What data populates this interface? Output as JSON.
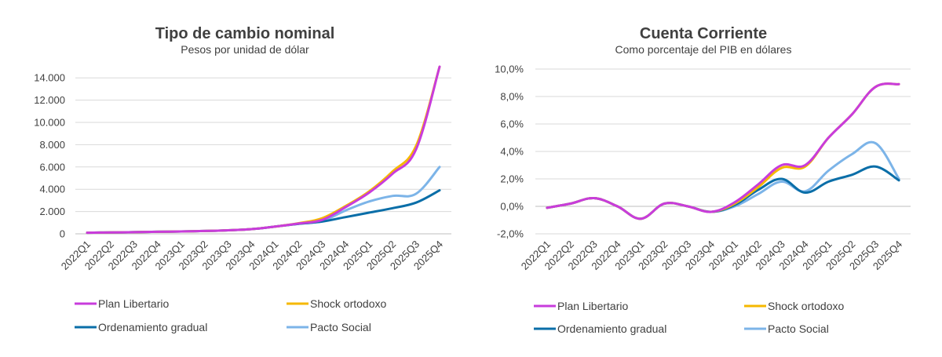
{
  "chart_data": [
    {
      "type": "line",
      "title": "Tipo de cambio nominal",
      "subtitle": "Pesos por unidad de dólar",
      "xlabel": "",
      "ylabel": "",
      "categories": [
        "2022Q1",
        "2022Q2",
        "2022Q3",
        "2022Q4",
        "2023Q1",
        "2023Q2",
        "2023Q3",
        "2023Q4",
        "2024Q1",
        "2024Q2",
        "2024Q3",
        "2024Q4",
        "2025Q1",
        "2025Q2",
        "2025Q3",
        "2025Q4"
      ],
      "ylim": [
        0,
        15000
      ],
      "yticks": [
        0,
        2000,
        4000,
        6000,
        8000,
        10000,
        12000,
        14000
      ],
      "ytick_labels": [
        "0",
        "2.000",
        "4.000",
        "6.000",
        "8.000",
        "10.000",
        "12.000",
        "14.000"
      ],
      "grid": true,
      "legend_position": "bottom",
      "series": [
        {
          "name": "Plan Libertario",
          "color": "#c83cdc",
          "values": [
            100,
            120,
            150,
            180,
            210,
            250,
            320,
            420,
            650,
            920,
            1250,
            2400,
            3700,
            5400,
            7600,
            15000
          ]
        },
        {
          "name": "Shock ortodoxo",
          "color": "#f5b800",
          "values": [
            100,
            120,
            150,
            180,
            210,
            250,
            320,
            420,
            650,
            950,
            1400,
            2500,
            3800,
            5600,
            7900,
            15000
          ]
        },
        {
          "name": "Ordenamiento gradual",
          "color": "#0a6ea8",
          "values": [
            100,
            120,
            150,
            180,
            210,
            250,
            320,
            420,
            650,
            900,
            1100,
            1500,
            1900,
            2300,
            2800,
            3900
          ]
        },
        {
          "name": "Pacto Social",
          "color": "#7cb4e8",
          "values": [
            100,
            120,
            150,
            180,
            210,
            250,
            320,
            420,
            650,
            900,
            1150,
            2100,
            2900,
            3400,
            3600,
            6000
          ]
        }
      ]
    },
    {
      "type": "line",
      "title": "Cuenta Corriente",
      "subtitle": "Como porcentaje del PIB en dólares",
      "xlabel": "",
      "ylabel": "",
      "categories": [
        "2022Q1",
        "2022Q2",
        "2022Q3",
        "2022Q4",
        "2023Q1",
        "2023Q2",
        "2023Q3",
        "2023Q4",
        "2024Q1",
        "2024Q2",
        "2024Q3",
        "2024Q4",
        "2025Q1",
        "2025Q2",
        "2025Q3",
        "2025Q4"
      ],
      "ylim": [
        -2,
        10
      ],
      "yticks": [
        -2,
        0,
        2,
        4,
        6,
        8,
        10
      ],
      "ytick_labels": [
        "-2,0%",
        "0,0%",
        "2,0%",
        "4,0%",
        "6,0%",
        "8,0%",
        "10,0%"
      ],
      "grid": true,
      "legend_position": "bottom",
      "series": [
        {
          "name": "Plan Libertario",
          "color": "#c83cdc",
          "values": [
            -0.1,
            0.2,
            0.6,
            0.0,
            -0.9,
            0.2,
            0.0,
            -0.4,
            0.3,
            1.6,
            3.0,
            3.0,
            5.0,
            6.7,
            8.7,
            8.9
          ]
        },
        {
          "name": "Shock ortodoxo",
          "color": "#f5b800",
          "values": [
            -0.1,
            0.2,
            0.6,
            0.0,
            -0.9,
            0.2,
            0.0,
            -0.4,
            0.2,
            1.4,
            2.8,
            2.9,
            5.0,
            6.7,
            8.7,
            8.9
          ]
        },
        {
          "name": "Ordenamiento gradual",
          "color": "#0a6ea8",
          "values": [
            -0.1,
            0.2,
            0.6,
            0.0,
            -0.9,
            0.2,
            0.0,
            -0.4,
            0.1,
            1.2,
            2.0,
            1.0,
            1.8,
            2.3,
            2.9,
            1.9
          ]
        },
        {
          "name": "Pacto Social",
          "color": "#7cb4e8",
          "values": [
            -0.1,
            0.2,
            0.6,
            0.0,
            -0.9,
            0.2,
            0.0,
            -0.4,
            0.0,
            0.9,
            1.8,
            1.1,
            2.6,
            3.8,
            4.6,
            2.0
          ]
        }
      ]
    }
  ]
}
